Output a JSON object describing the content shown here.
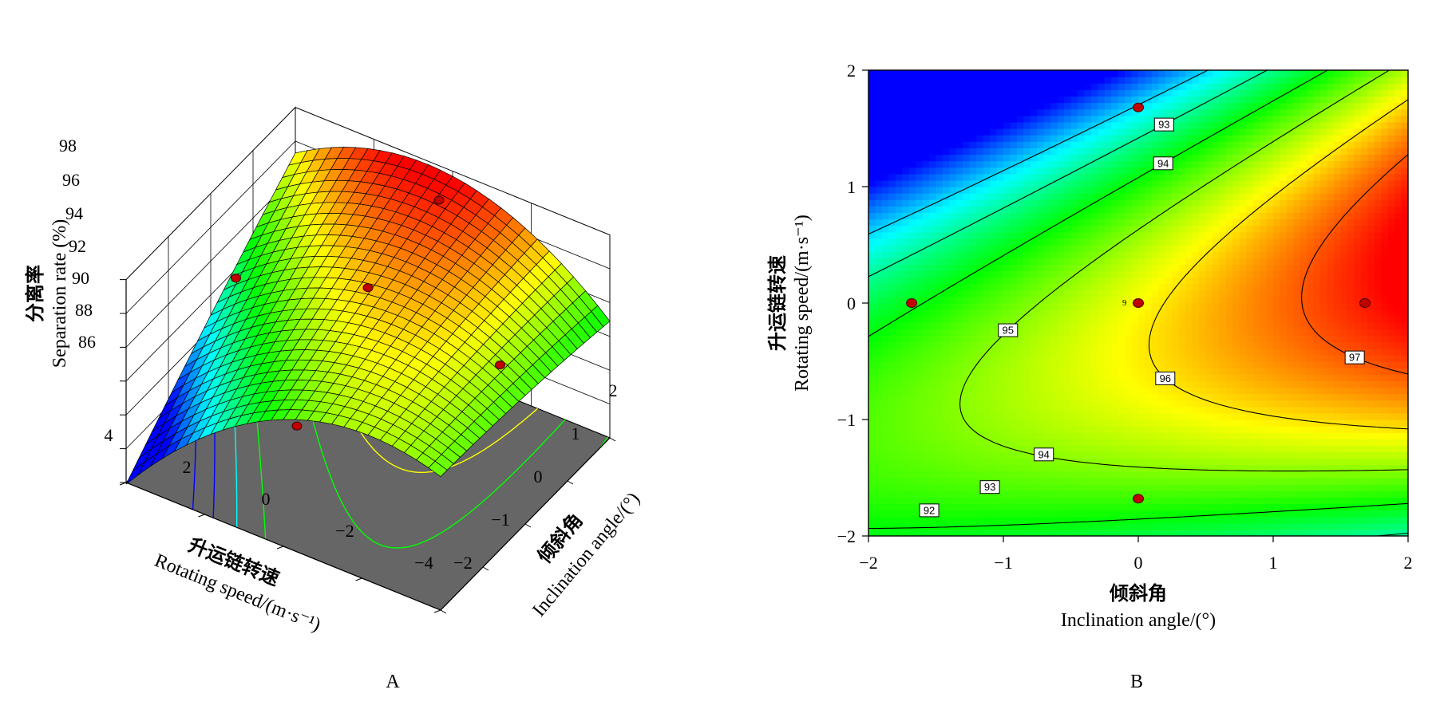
{
  "panels": [
    {
      "id": "A",
      "label": "A",
      "y_title_cn": "分离率",
      "y_title_en": "Separation rate (%)",
      "left_axis_cn": "升运链转速",
      "left_axis_en": "Rotating speed/(m·s⁻¹)",
      "right_axis_cn": "倾斜角",
      "right_axis_en": "Inclination angle/(°)",
      "z_ticks": [
        "98",
        "96",
        "94",
        "92",
        "90",
        "88",
        "86"
      ],
      "speed_ticks": [
        "4",
        "2",
        "0",
        "−2",
        "−4"
      ],
      "angle_ticks": [
        "−2",
        "−1",
        "0",
        "1",
        "2"
      ]
    },
    {
      "id": "B",
      "label": "B",
      "x_title_cn": "倾斜角",
      "x_title_en": "Inclination angle/(°)",
      "y_title_cn": "升运链转速",
      "y_title_en": "Rotating speed/(m·s⁻¹)",
      "x_ticks": [
        "−2",
        "−1",
        "0",
        "1",
        "2"
      ],
      "y_ticks": [
        "2",
        "1",
        "0",
        "−1",
        "−2"
      ],
      "design_point_count_label": "9"
    }
  ],
  "chart_data": [
    {
      "type": "surface",
      "title": "",
      "x_name": "倾斜角 Inclination angle/(°)",
      "y_name": "升运链转速 Rotating speed/(m·s⁻¹)",
      "z_name": "分离率 Separation rate (%)",
      "z_range": [
        86,
        98
      ],
      "angle_range": [
        -2,
        2
      ],
      "speed_range": [
        -4,
        4
      ],
      "colormap": [
        "#0000ff",
        "#00ffff",
        "#00ff00",
        "#ffff00",
        "#ff0000"
      ],
      "floor_color": "#666666",
      "design_points": [
        {
          "angle": -1.68,
          "speed": 0,
          "z": 92.3
        },
        {
          "angle": 0,
          "speed": -1.68,
          "z": 94.8
        },
        {
          "angle": 0,
          "speed": 0,
          "z": 96.2
        },
        {
          "angle": 0,
          "speed": 1.68,
          "z": 93.6
        },
        {
          "angle": 1.68,
          "speed": 0,
          "z": 97.1
        }
      ]
    },
    {
      "type": "contour",
      "title": "",
      "xlabel": "倾斜角 Inclination angle/(°)",
      "ylabel": "升运链转速 Rotating speed/(m·s⁻¹)",
      "xlim": [
        -2,
        2
      ],
      "ylim": [
        -2,
        2
      ],
      "levels": [
        92,
        93,
        94,
        95,
        96,
        97
      ],
      "colormap": [
        "#0000ff",
        "#00ffff",
        "#00ff00",
        "#ffff00",
        "#ff0000"
      ],
      "design_points": [
        {
          "x": -1.68,
          "y": 0
        },
        {
          "x": 0,
          "y": 0
        },
        {
          "x": 1.68,
          "y": 0
        },
        {
          "x": 0,
          "y": 1.68
        },
        {
          "x": 0,
          "y": -1.68
        }
      ],
      "center_replicates": 9
    }
  ]
}
